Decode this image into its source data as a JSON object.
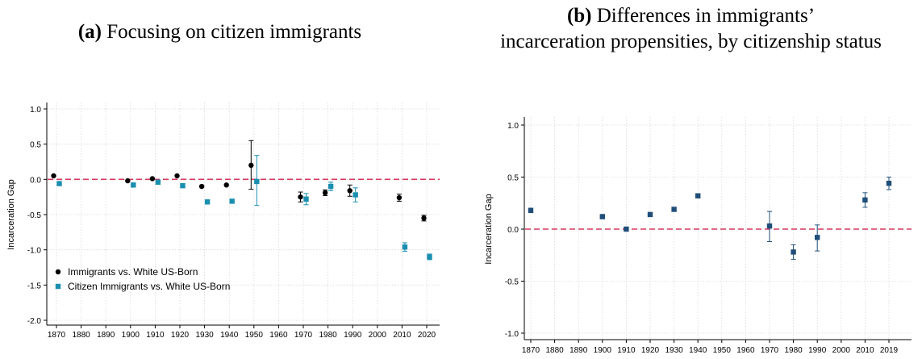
{
  "panel_a_label": "(a)",
  "panel_a_title": "Focusing on citizen immigrants",
  "panel_b_label": "(b)",
  "panel_b_title_line1": "Differences in immigrants’",
  "panel_b_title_line2": "incarceration propensities, by citizenship status",
  "colors": {
    "black": "#000000",
    "teal": "#1a8fb0",
    "navy": "#1f4e79",
    "zero_line": "#d6395f",
    "grid": "#d9d9d9"
  },
  "chart_data": [
    {
      "type": "scatter",
      "ylabel": "Incarceration Gap",
      "xlabel": "",
      "ylim": [
        -2.0,
        1.0
      ],
      "yticks": [
        "-2.0",
        "-1.5",
        "-1.0",
        "-0.5",
        "0.0",
        "0.5",
        "1.0"
      ],
      "xticks": [
        "1870",
        "1880",
        "1890",
        "1900",
        "1910",
        "1920",
        "1930",
        "1940",
        "1950",
        "1960",
        "1970",
        "1980",
        "1990",
        "2000",
        "2010",
        "2020"
      ],
      "grid": true,
      "reference_line": 0,
      "legend_position": "bottom-left",
      "series": [
        {
          "name": "Immigrants vs. White US-Born",
          "marker": "circle",
          "x": [
            1870,
            1900,
            1910,
            1920,
            1930,
            1940,
            1950,
            1970,
            1980,
            1990,
            2010,
            2020
          ],
          "y": [
            0.05,
            -0.02,
            0.01,
            0.05,
            -0.1,
            -0.08,
            0.2,
            -0.25,
            -0.19,
            -0.16,
            -0.26,
            -0.55
          ],
          "ci_low": [
            0.03,
            -0.04,
            -0.01,
            0.03,
            -0.12,
            -0.1,
            -0.14,
            -0.32,
            -0.23,
            -0.24,
            -0.31,
            -0.59
          ],
          "ci_high": [
            0.07,
            0.0,
            0.03,
            0.07,
            -0.08,
            -0.06,
            0.55,
            -0.18,
            -0.15,
            -0.08,
            -0.21,
            -0.51
          ]
        },
        {
          "name": "Citizen Immigrants vs. White US-Born",
          "marker": "square",
          "x": [
            1870,
            1900,
            1910,
            1920,
            1930,
            1940,
            1950,
            1970,
            1980,
            1990,
            2010,
            2020
          ],
          "y": [
            -0.06,
            -0.08,
            -0.04,
            -0.09,
            -0.32,
            -0.31,
            -0.03,
            -0.28,
            -0.1,
            -0.22,
            -0.96,
            -1.1
          ],
          "ci_low": [
            -0.08,
            -0.1,
            -0.06,
            -0.11,
            -0.34,
            -0.33,
            -0.37,
            -0.36,
            -0.16,
            -0.32,
            -1.02,
            -1.14
          ],
          "ci_high": [
            -0.04,
            -0.06,
            -0.02,
            -0.07,
            -0.3,
            -0.29,
            0.34,
            -0.2,
            -0.04,
            -0.12,
            -0.9,
            -1.06
          ]
        }
      ]
    },
    {
      "type": "scatter",
      "ylabel": "Incarceration Gap",
      "xlabel": "",
      "ylim": [
        -1.0,
        1.0
      ],
      "yticks": [
        "-1.0",
        "-0.5",
        "0.0",
        "0.5",
        "1.0"
      ],
      "xticks": [
        "1870",
        "1880",
        "1890",
        "1900",
        "1910",
        "1920",
        "1930",
        "1940",
        "1950",
        "1960",
        "1970",
        "1980",
        "1990",
        "2000",
        "2010",
        "2019"
      ],
      "grid": true,
      "reference_line": 0,
      "series": [
        {
          "marker": "square",
          "x": [
            1870,
            1900,
            1910,
            1920,
            1930,
            1940,
            1970,
            1980,
            1990,
            2010,
            2019
          ],
          "y": [
            0.18,
            0.12,
            0.0,
            0.14,
            0.19,
            0.32,
            0.03,
            -0.22,
            -0.08,
            0.28,
            0.44
          ],
          "ci_low": [
            0.16,
            0.1,
            -0.02,
            0.12,
            0.17,
            0.3,
            -0.12,
            -0.29,
            -0.21,
            0.21,
            0.38
          ],
          "ci_high": [
            0.2,
            0.14,
            0.02,
            0.16,
            0.21,
            0.34,
            0.17,
            -0.15,
            0.04,
            0.35,
            0.5
          ]
        }
      ]
    }
  ]
}
